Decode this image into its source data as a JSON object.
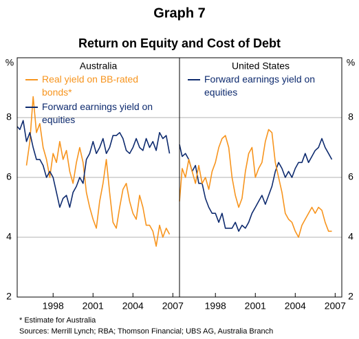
{
  "title": "Graph 7",
  "subtitle": "Return on Equity and Cost of Debt",
  "y_unit": "%",
  "footnote": "*   Estimate for Australia",
  "sources": "Sources: Merrill Lynch; RBA; Thomson Financial; UBS AG, Australia Branch",
  "chart_data": [
    {
      "type": "line",
      "title": "Australia",
      "legend": "upper left",
      "grid": true,
      "xlim": [
        1995.3,
        2007.5
      ],
      "xticks": [
        1998,
        2001,
        2004,
        2007
      ],
      "ylim": [
        2,
        10
      ],
      "yticks": [
        2,
        4,
        6,
        8
      ],
      "x": [
        1995.3,
        1995.5,
        1995.75,
        1996,
        1996.25,
        1996.5,
        1996.75,
        1997,
        1997.25,
        1997.5,
        1997.75,
        1998,
        1998.25,
        1998.5,
        1998.75,
        1999,
        1999.25,
        1999.5,
        1999.75,
        2000,
        2000.25,
        2000.5,
        2000.75,
        2001,
        2001.25,
        2001.5,
        2001.75,
        2002,
        2002.25,
        2002.5,
        2002.75,
        2003,
        2003.25,
        2003.5,
        2003.75,
        2004,
        2004.25,
        2004.5,
        2004.75,
        2005,
        2005.25,
        2005.5,
        2005.75,
        2006,
        2006.25,
        2006.5,
        2006.75
      ],
      "series": [
        {
          "name": "Real yield on BB-rated bonds*",
          "color": "#f7941d",
          "values": [
            null,
            null,
            null,
            6.4,
            7.2,
            8.7,
            7.5,
            7.8,
            7.0,
            6.6,
            6.0,
            6.8,
            6.5,
            7.2,
            6.6,
            6.9,
            6.2,
            5.8,
            6.5,
            7.0,
            6.5,
            5.5,
            5.0,
            4.6,
            4.3,
            5.2,
            5.8,
            6.6,
            5.5,
            4.5,
            4.3,
            5.0,
            5.6,
            5.8,
            5.2,
            4.8,
            4.6,
            5.4,
            5.0,
            4.4,
            4.4,
            4.2,
            3.7,
            4.4,
            4.0,
            4.3,
            4.1
          ]
        },
        {
          "name": "Forward earnings yield on equities",
          "color": "#0d2a6e",
          "values": [
            7.7,
            7.6,
            7.9,
            7.2,
            7.5,
            7.0,
            6.6,
            6.6,
            6.4,
            6.0,
            6.2,
            6.0,
            5.5,
            5.0,
            5.3,
            5.4,
            5.0,
            5.5,
            5.7,
            6.0,
            5.8,
            6.6,
            6.8,
            7.2,
            6.8,
            7.0,
            7.3,
            6.8,
            7.0,
            7.4,
            7.4,
            7.5,
            7.3,
            6.9,
            6.8,
            7.0,
            7.3,
            7.0,
            6.9,
            7.3,
            7.0,
            7.2,
            6.9,
            7.5,
            7.3,
            7.4,
            6.8
          ]
        }
      ]
    },
    {
      "type": "line",
      "title": "United States",
      "legend": "upper left",
      "grid": true,
      "xlim": [
        1995.3,
        2007.5
      ],
      "xticks": [
        1998,
        2001,
        2004,
        2007
      ],
      "ylim": [
        2,
        10
      ],
      "yticks": [
        2,
        4,
        6,
        8
      ],
      "x": [
        1995.3,
        1995.5,
        1995.75,
        1996,
        1996.25,
        1996.5,
        1996.75,
        1997,
        1997.25,
        1997.5,
        1997.75,
        1998,
        1998.25,
        1998.5,
        1998.75,
        1999,
        1999.25,
        1999.5,
        1999.75,
        2000,
        2000.25,
        2000.5,
        2000.75,
        2001,
        2001.25,
        2001.5,
        2001.75,
        2002,
        2002.25,
        2002.5,
        2002.75,
        2003,
        2003.25,
        2003.5,
        2003.75,
        2004,
        2004.25,
        2004.5,
        2004.75,
        2005,
        2005.25,
        2005.5,
        2005.75,
        2006,
        2006.25,
        2006.5,
        2006.75
      ],
      "series": [
        {
          "name": "Forward earnings yield on equities",
          "color": "#0d2a6e",
          "values": [
            7.1,
            6.7,
            6.8,
            6.6,
            6.2,
            6.4,
            5.8,
            5.8,
            5.3,
            5.0,
            4.8,
            4.8,
            4.5,
            4.8,
            4.3,
            4.3,
            4.3,
            4.5,
            4.2,
            4.4,
            4.3,
            4.5,
            4.8,
            5.0,
            5.2,
            5.4,
            5.1,
            5.4,
            5.7,
            6.2,
            6.5,
            6.3,
            6.0,
            6.2,
            6.0,
            6.3,
            6.5,
            6.5,
            6.8,
            6.5,
            6.7,
            6.9,
            7.0,
            7.3,
            7.0,
            6.8,
            6.6
          ]
        },
        {
          "name": "Real yield on BB-rated bonds*",
          "color": "#f7941d",
          "legend_hidden": true,
          "values": [
            5.2,
            6.3,
            6.0,
            6.6,
            6.2,
            5.8,
            6.4,
            5.8,
            6.0,
            5.6,
            6.2,
            6.5,
            7.0,
            7.3,
            7.4,
            7.0,
            6.0,
            5.4,
            5.0,
            5.3,
            6.2,
            6.8,
            7.0,
            6.0,
            6.3,
            6.5,
            7.2,
            7.6,
            7.5,
            6.5,
            6.0,
            5.5,
            4.8,
            4.6,
            4.5,
            4.2,
            4.0,
            4.4,
            4.6,
            4.8,
            5.0,
            4.8,
            5.0,
            4.9,
            4.5,
            4.2,
            4.2
          ]
        }
      ]
    }
  ]
}
